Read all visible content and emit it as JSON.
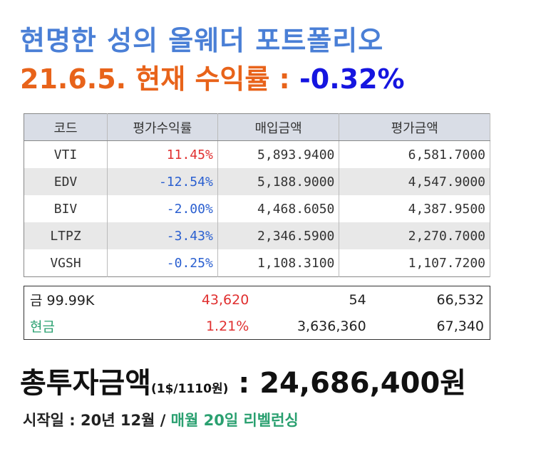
{
  "header": {
    "title": "현명한 성의 올웨더 포트폴리오",
    "subtitle": "21.6.5. 현재 수익률 : ",
    "return": "-0.32%"
  },
  "table": {
    "headers": [
      "코드",
      "평가수익률",
      "매입금액",
      "평가금액"
    ],
    "rows": [
      [
        "VTI",
        "11.45%",
        "5,893.9400",
        "6,581.7000"
      ],
      [
        "EDV",
        "-12.54%",
        "5,188.9000",
        "4,547.9000"
      ],
      [
        "BIV",
        "-2.00%",
        "4,468.6050",
        "4,387.9500"
      ],
      [
        "LTPZ",
        "-3.43%",
        "2,346.5900",
        "2,270.7000"
      ],
      [
        "VGSH",
        "-0.25%",
        "1,108.3100",
        "1,107.7200"
      ]
    ]
  },
  "summary": {
    "rows": [
      [
        "금 99.99K",
        "43,620",
        "54",
        "66,532"
      ],
      [
        "현금",
        "1.21%",
        "3,636,360",
        "67,340"
      ]
    ]
  },
  "total": {
    "label": "총투자금액",
    "note": "(1$/1110원)",
    "value": " : 24,686,400원"
  },
  "footer": {
    "label": "시작일 : 20년 12월 / ",
    "highlight": "매월 20일 리벨런싱"
  }
}
